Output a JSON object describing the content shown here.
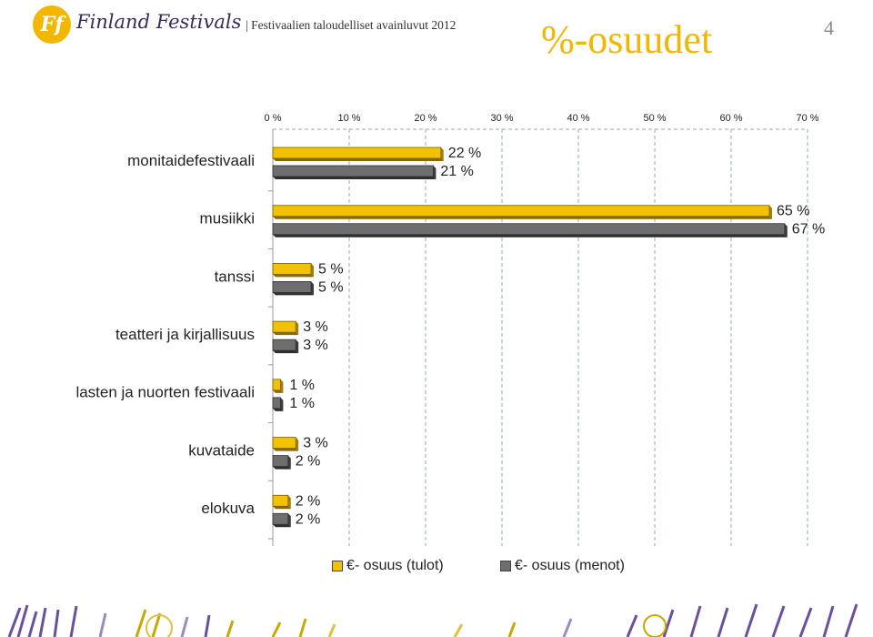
{
  "header": {
    "brand": "Finland Festivals",
    "logo_text": "Ff",
    "subtitle": "| Festivaalien taloudelliset avainluvut 2012",
    "title": "%-osuudet",
    "page_number": "4"
  },
  "colors": {
    "accent": "#f2b705",
    "series_income": "#f2c200",
    "series_expense": "#6e6e6e",
    "grid": "#8fa8c8"
  },
  "chart_data": {
    "type": "bar",
    "orientation": "horizontal",
    "title": "",
    "xlabel": "",
    "ylabel": "",
    "xlim": [
      0,
      70
    ],
    "x_ticks": [
      "0 %",
      "10 %",
      "20 %",
      "30 %",
      "40 %",
      "50 %",
      "60 %",
      "70 %"
    ],
    "x_axis_position": "top",
    "grid": true,
    "categories": [
      "monitaidefestivaali",
      "musiikki",
      "tanssi",
      "teatteri ja kirjallisuus",
      "lasten ja nuorten festivaali",
      "kuvataide",
      "elokuva"
    ],
    "series": [
      {
        "name": "€- osuus (tulot)",
        "values": [
          22,
          65,
          5,
          3,
          1,
          3,
          2
        ],
        "labels": [
          "22 %",
          "65 %",
          "5 %",
          "3 %",
          "1 %",
          "3 %",
          "2 %"
        ]
      },
      {
        "name": "€- osuus (menot)",
        "values": [
          21,
          67,
          5,
          3,
          1,
          2,
          2
        ],
        "labels": [
          "21 %",
          "67 %",
          "5 %",
          "3 %",
          "1 %",
          "2 %",
          "2 %"
        ]
      }
    ],
    "legend_position": "bottom"
  }
}
